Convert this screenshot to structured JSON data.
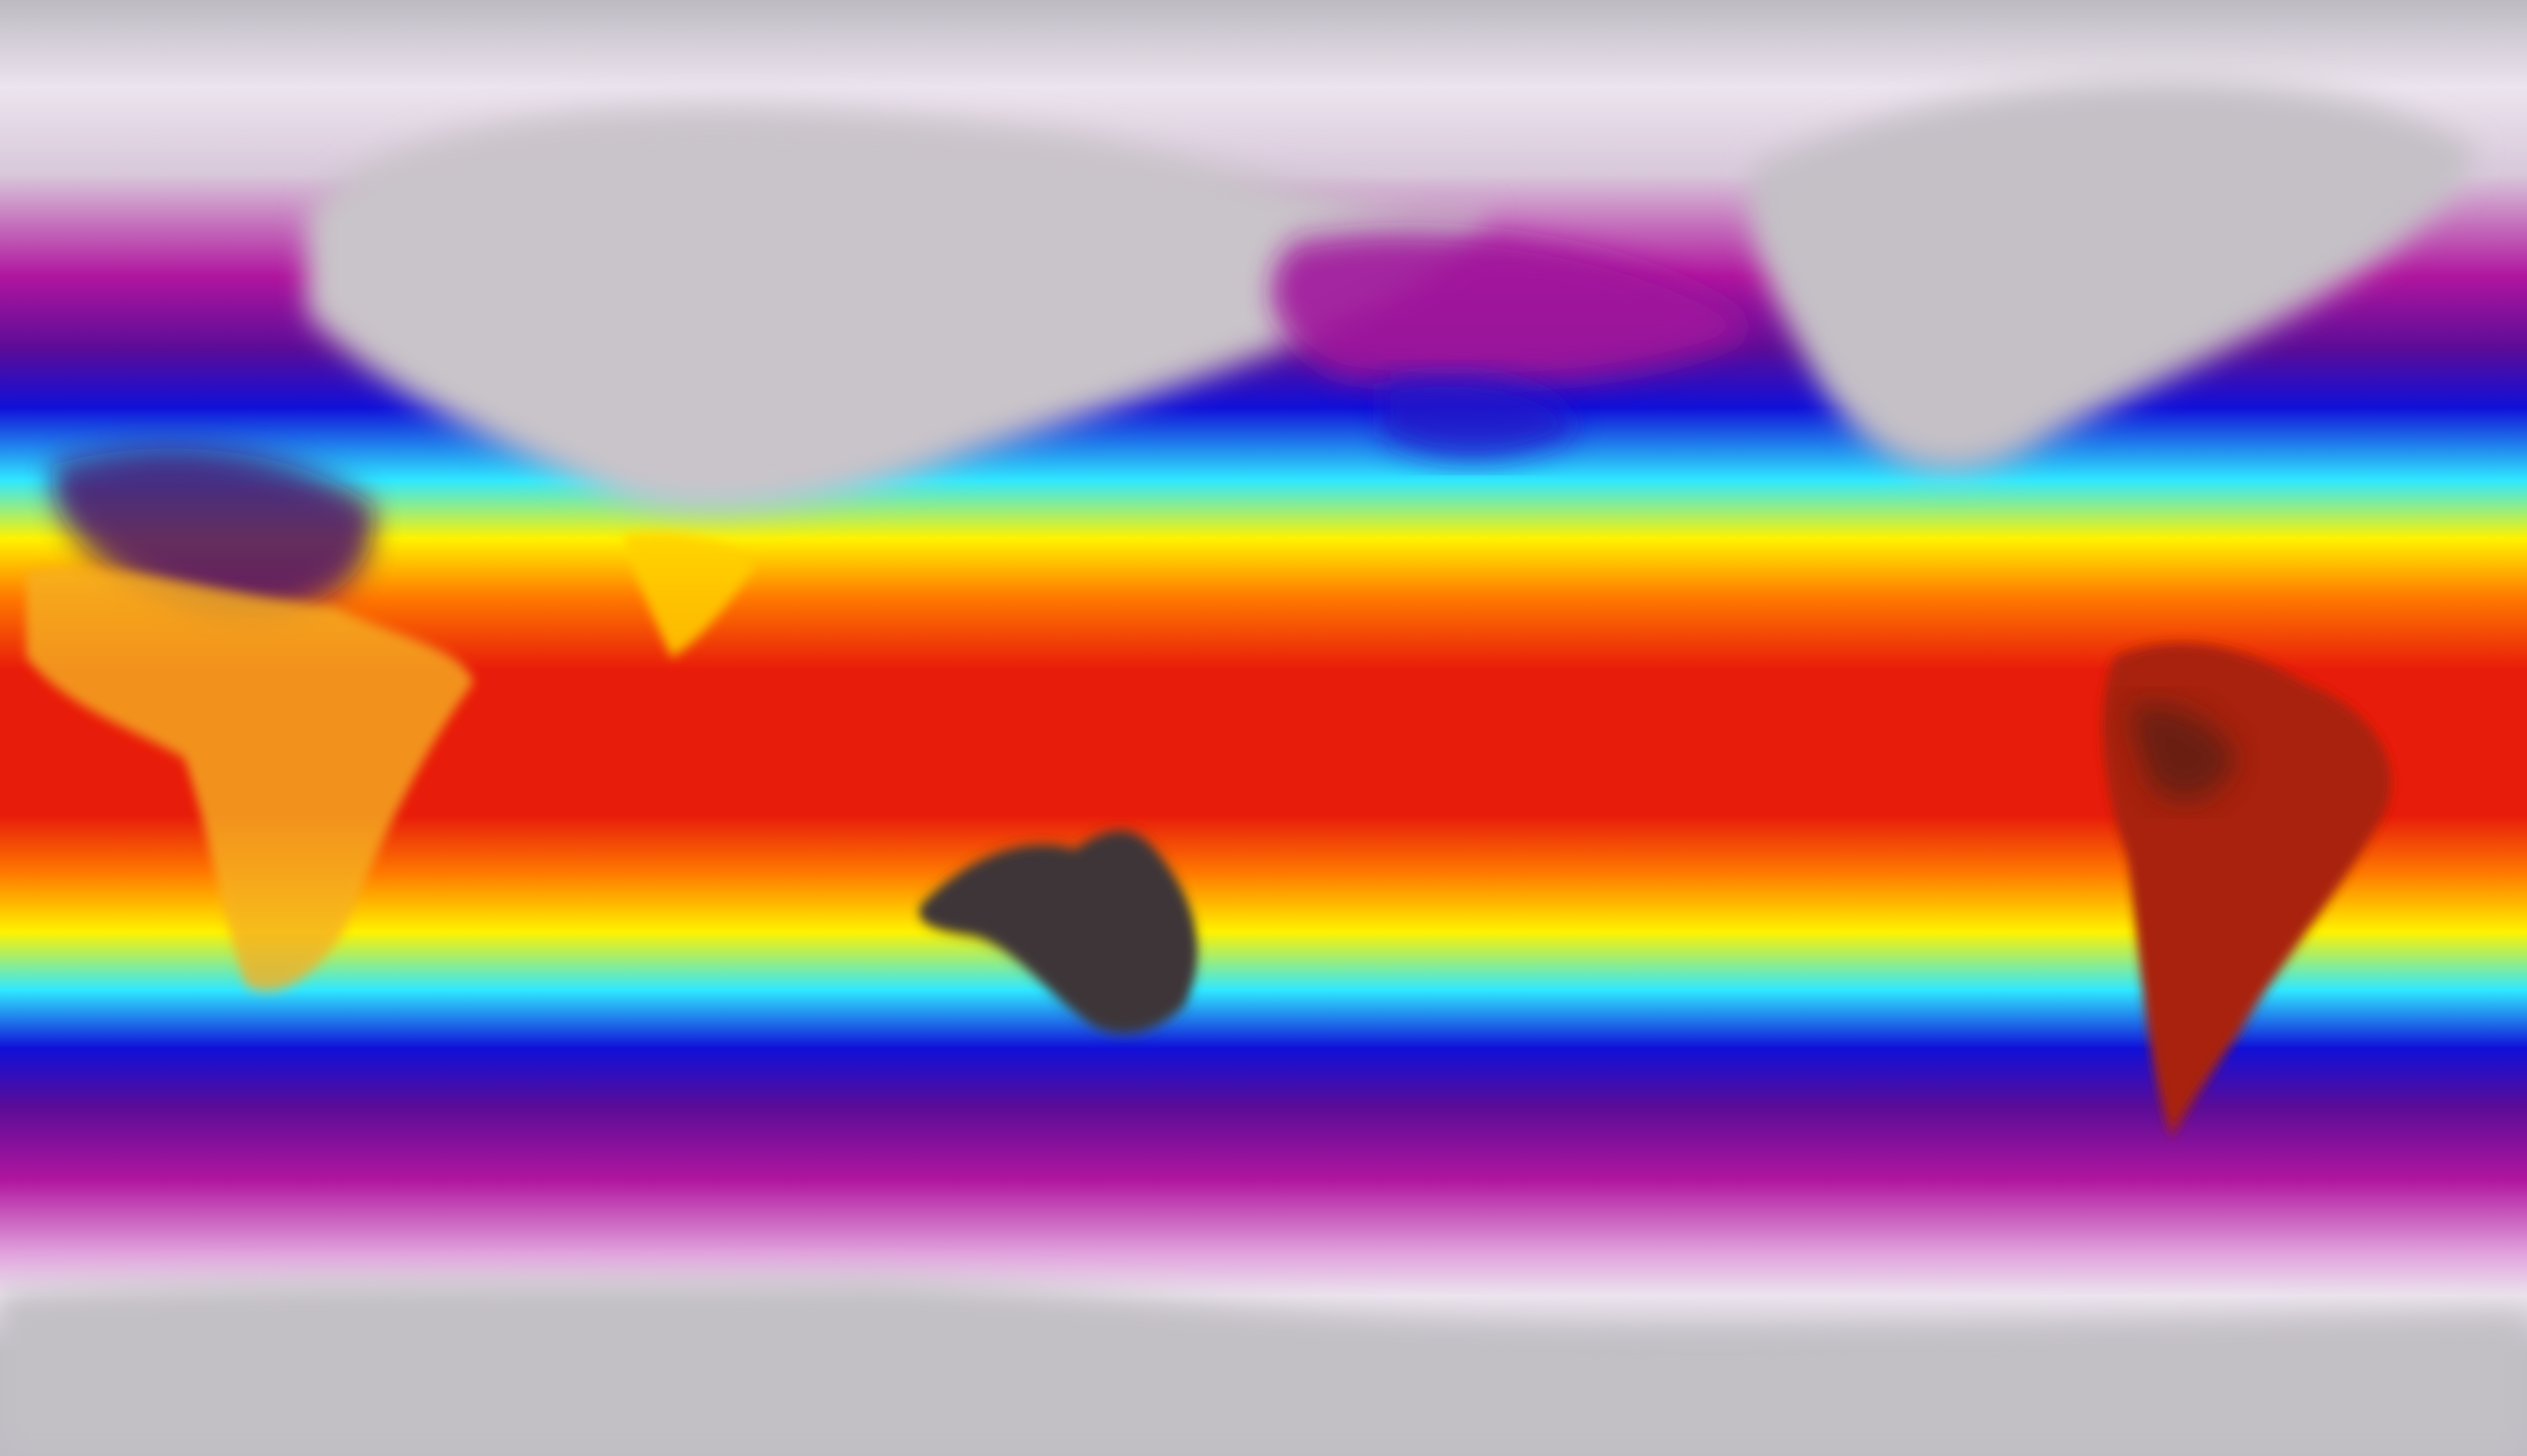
{
  "map": {
    "projection": "equirectangular",
    "colors": {
      "polar_gray": "#bdbac2",
      "polar_white": "#ece4ee",
      "magenta": "#b0159e",
      "purple": "#5a0c98",
      "blue": "#1010d8",
      "cyan": "#30e8ff",
      "yellow": "#fff200",
      "orange": "#ff7a00",
      "red": "#e81c0a",
      "dark_hot": "#3a3436"
    }
  }
}
